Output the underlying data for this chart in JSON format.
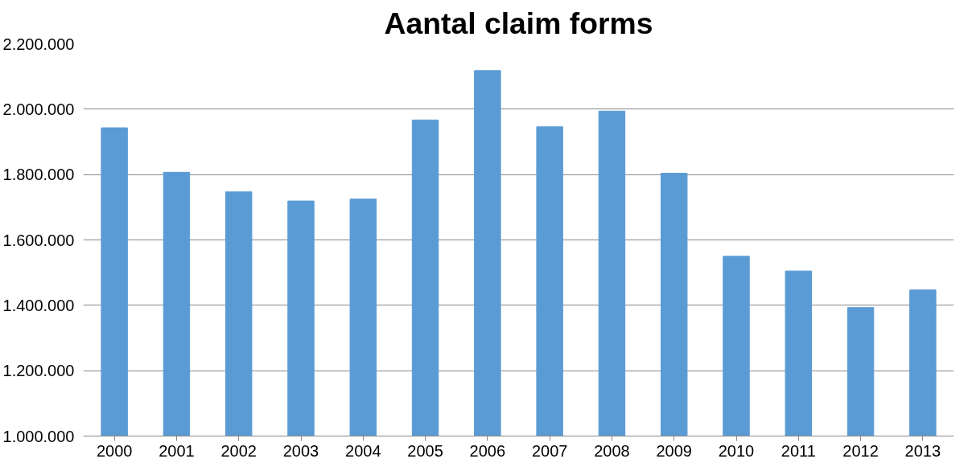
{
  "chart_data": {
    "type": "bar",
    "title": "Aantal claim forms",
    "categories": [
      "2000",
      "2001",
      "2002",
      "2003",
      "2004",
      "2005",
      "2006",
      "2007",
      "2008",
      "2009",
      "2010",
      "2011",
      "2012",
      "2013"
    ],
    "values": [
      1943000,
      1807000,
      1747000,
      1719000,
      1725000,
      1967000,
      2118000,
      1946000,
      1994000,
      1804000,
      1550000,
      1505000,
      1393000,
      1447000
    ],
    "color": "#5b9bd5",
    "ylim": [
      1000000,
      2200000
    ],
    "yticks": [
      {
        "value": 1000000,
        "label": "1.000.000"
      },
      {
        "value": 1200000,
        "label": "1.200.000"
      },
      {
        "value": 1400000,
        "label": "1.400.000"
      },
      {
        "value": 1600000,
        "label": "1.600.000"
      },
      {
        "value": 1800000,
        "label": "1.800.000"
      },
      {
        "value": 2000000,
        "label": "2.000.000"
      },
      {
        "value": 2200000,
        "label": "2.200.000"
      }
    ],
    "grid": "y"
  }
}
